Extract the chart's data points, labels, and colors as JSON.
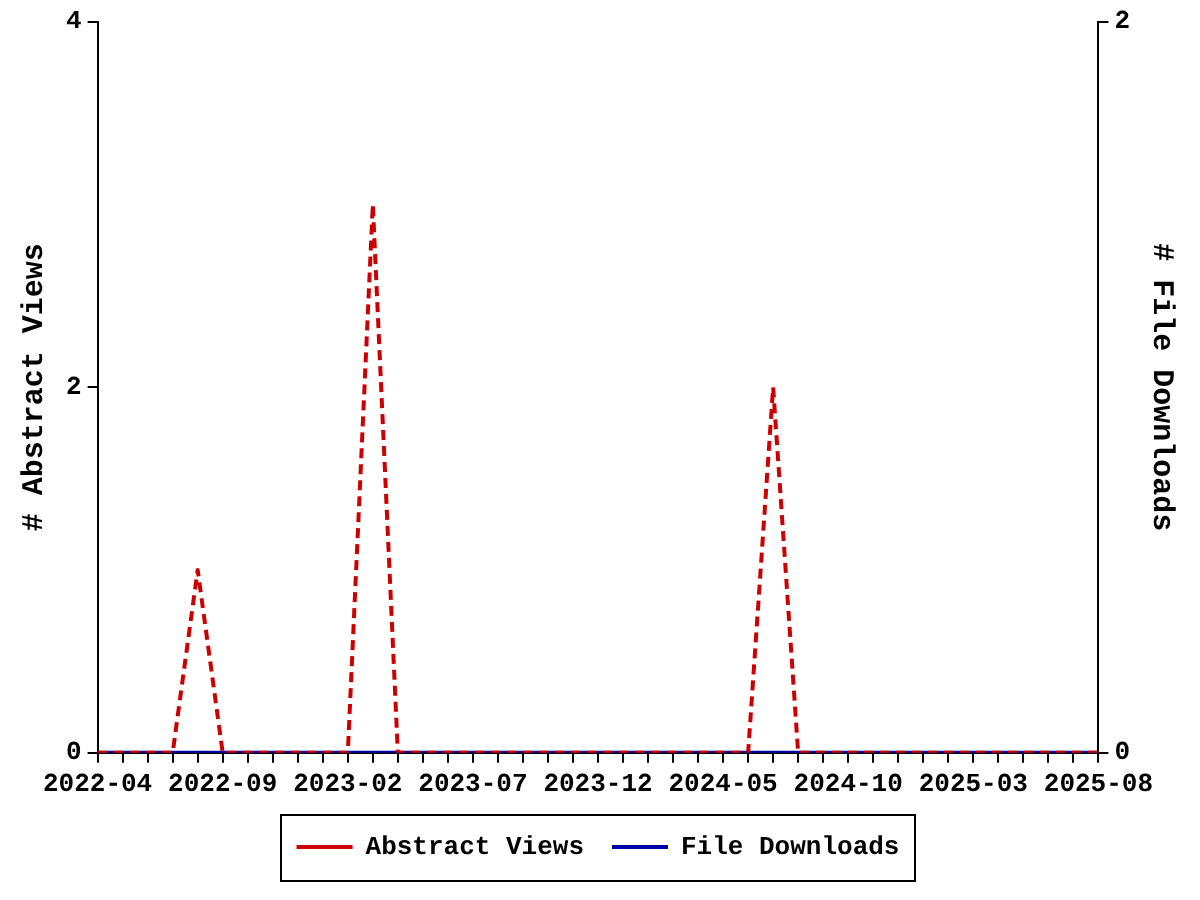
{
  "chart_data": {
    "type": "line",
    "ylabel": "# Abstract Views",
    "y2label": "# File Downloads",
    "x": [
      "2022-04",
      "2022-05",
      "2022-06",
      "2022-07",
      "2022-08",
      "2022-09",
      "2022-10",
      "2022-11",
      "2022-12",
      "2023-01",
      "2023-02",
      "2023-03",
      "2023-04",
      "2023-05",
      "2023-06",
      "2023-07",
      "2023-08",
      "2023-09",
      "2023-10",
      "2023-11",
      "2023-12",
      "2024-01",
      "2024-02",
      "2024-03",
      "2024-04",
      "2024-05",
      "2024-06",
      "2024-07",
      "2024-08",
      "2024-09",
      "2024-10",
      "2024-11",
      "2024-12",
      "2025-01",
      "2025-02",
      "2025-03",
      "2025-04",
      "2025-05",
      "2025-06",
      "2025-07",
      "2025-08"
    ],
    "series": [
      {
        "name": "Abstract Views",
        "color": "#cc0000",
        "line_style": "dashed",
        "values": [
          0,
          0,
          0,
          0,
          1,
          0,
          0,
          0,
          0,
          0,
          0,
          3,
          0,
          0,
          0,
          0,
          0,
          0,
          0,
          0,
          0,
          0,
          0,
          0,
          0,
          0,
          0,
          2,
          0,
          0,
          0,
          0,
          0,
          0,
          0,
          0,
          0,
          0,
          0,
          0,
          0
        ]
      },
      {
        "name": "File Downloads",
        "color": "#0000aa",
        "line_style": "solid",
        "axis": "y2",
        "values": [
          0,
          0,
          0,
          0,
          0,
          0,
          0,
          0,
          0,
          0,
          0,
          0,
          0,
          0,
          0,
          0,
          0,
          0,
          0,
          0,
          0,
          0,
          0,
          0,
          0,
          0,
          0,
          0,
          0,
          0,
          0,
          0,
          0,
          0,
          0,
          0,
          0,
          0,
          0,
          0,
          0
        ]
      }
    ],
    "xlim": [
      "2022-04",
      "2025-08"
    ],
    "xticks": [
      "2022-04",
      {
        "value": "2022-05",
        "label": null
      },
      {
        "value": "2022-06",
        "label": null
      },
      {
        "value": "2022-07",
        "label": null
      },
      {
        "value": "2022-08",
        "label": null
      },
      "2022-09",
      {
        "value": "2022-10",
        "label": null
      },
      {
        "value": "2022-11",
        "label": null
      },
      {
        "value": "2022-12",
        "label": null
      },
      {
        "value": "2023-01",
        "label": null
      },
      "2023-02",
      {
        "value": "2023-03",
        "label": null
      },
      {
        "value": "2023-04",
        "label": null
      },
      {
        "value": "2023-05",
        "label": null
      },
      {
        "value": "2023-06",
        "label": null
      },
      "2023-07",
      {
        "value": "2023-08",
        "label": null
      },
      {
        "value": "2023-09",
        "label": null
      },
      {
        "value": "2023-10",
        "label": null
      },
      {
        "value": "2023-11",
        "label": null
      },
      "2023-12",
      {
        "value": "2024-01",
        "label": null
      },
      {
        "value": "2024-02",
        "label": null
      },
      {
        "value": "2024-03",
        "label": null
      },
      {
        "value": "2024-04",
        "label": null
      },
      "2024-05",
      {
        "value": "2024-06",
        "label": null
      },
      {
        "value": "2024-07",
        "label": null
      },
      {
        "value": "2024-08",
        "label": null
      },
      {
        "value": "2024-09",
        "label": null
      },
      "2024-10",
      {
        "value": "2024-11",
        "label": null
      },
      {
        "value": "2024-12",
        "label": null
      },
      {
        "value": "2025-01",
        "label": null
      },
      {
        "value": "2025-02",
        "label": null
      },
      "2025-03",
      {
        "value": "2025-04",
        "label": null
      },
      {
        "value": "2025-05",
        "label": null
      },
      {
        "value": "2025-06",
        "label": null
      },
      {
        "value": "2025-07",
        "label": null
      },
      "2025-08"
    ],
    "ylim": [
      0,
      4
    ],
    "yticks": [
      0,
      2,
      4
    ],
    "y2lim": [
      0,
      2
    ],
    "y2ticks": [
      0,
      2
    ],
    "grid": false,
    "legend": "bottom",
    "marker": "none"
  }
}
